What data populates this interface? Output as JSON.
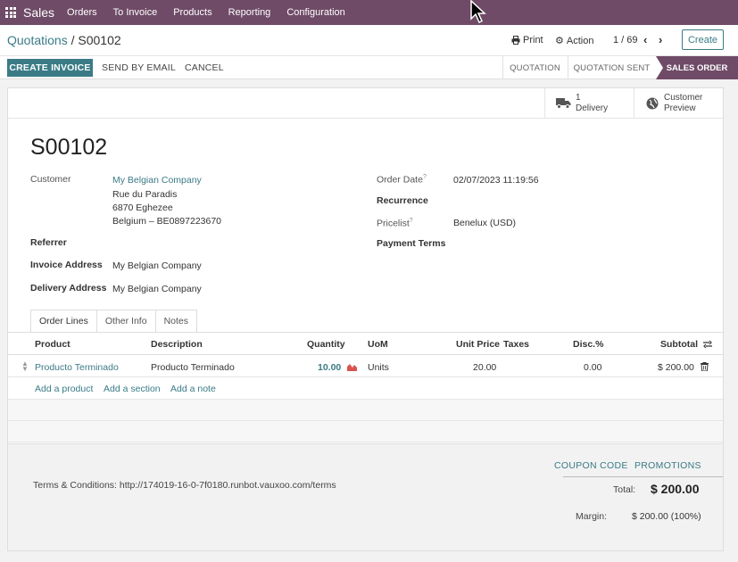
{
  "nav": {
    "app_name": "Sales",
    "items": [
      "Orders",
      "To Invoice",
      "Products",
      "Reporting",
      "Configuration"
    ]
  },
  "control": {
    "breadcrumb_parent": "Quotations",
    "breadcrumb_sep": " / ",
    "breadcrumb_current": "S00102",
    "print": "Print",
    "action": "Action",
    "pager": "1 / 69",
    "create": "Create"
  },
  "statusbar": {
    "create_invoice": "CREATE INVOICE",
    "send_by_email": "SEND BY EMAIL",
    "cancel": "CANCEL",
    "stages": [
      "QUOTATION",
      "QUOTATION SENT"
    ],
    "active_stage": "SALES ORDER"
  },
  "stat_buttons": {
    "delivery_count": "1",
    "delivery_label": "Delivery",
    "customer_preview_1": "Customer",
    "customer_preview_2": "Preview"
  },
  "form": {
    "title": "S00102",
    "customer_label": "Customer",
    "customer_name": "My Belgian Company",
    "address_line1": "Rue du Paradis",
    "address_line2": "6870 Eghezee",
    "address_line3": "Belgium – BE0897223670",
    "referrer_label": "Referrer",
    "invoice_address_label": "Invoice Address",
    "invoice_address": "My Belgian Company",
    "delivery_address_label": "Delivery Address",
    "delivery_address": "My Belgian Company",
    "order_date_label": "Order Date",
    "order_date": "02/07/2023 11:19:56",
    "recurrence_label": "Recurrence",
    "pricelist_label": "Pricelist",
    "pricelist": "Benelux (USD)",
    "payment_terms_label": "Payment Terms",
    "tooltip_mark": "?"
  },
  "tabs": [
    "Order Lines",
    "Other Info",
    "Notes"
  ],
  "table": {
    "headers": {
      "product": "Product",
      "description": "Description",
      "quantity": "Quantity",
      "uom": "UoM",
      "unit_price": "Unit Price",
      "taxes": "Taxes",
      "disc": "Disc.%",
      "subtotal": "Subtotal"
    },
    "rows": [
      {
        "product": "Producto Terminado",
        "description": "Producto Terminado",
        "quantity": "10.00",
        "uom": "Units",
        "unit_price": "20.00",
        "taxes": "",
        "disc": "0.00",
        "subtotal": "$ 200.00"
      }
    ],
    "add_product": "Add a product",
    "add_section": "Add a section",
    "add_note": "Add a note"
  },
  "footer": {
    "terms": "Terms & Conditions: http://174019-16-0-7f0180.runbot.vauxoo.com/terms",
    "coupon_code": "COUPON CODE",
    "promotions": "PROMOTIONS",
    "total_label": "Total:",
    "total_value": "$ 200.00",
    "margin_label": "Margin:",
    "margin_value": "$ 200.00 (100%)"
  },
  "colors": {
    "brand": "#6f4b67",
    "accent": "#3a7b86"
  }
}
